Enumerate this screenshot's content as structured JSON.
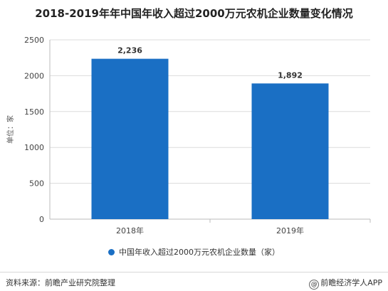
{
  "chart_data": {
    "type": "bar",
    "title": "2018-2019年年中国年收入超过2000万元农机企业数量变化情况",
    "categories": [
      "2018年",
      "2019年"
    ],
    "series": [
      {
        "name": "中国年收入超过2000万元农机企业数量（家）",
        "values": [
          2236,
          1892
        ]
      }
    ],
    "data_labels": [
      "2,236",
      "1,892"
    ],
    "ylabel": "单位：家",
    "ylim": [
      0,
      2500
    ],
    "yticks": [
      0,
      500,
      1000,
      1500,
      2000,
      2500
    ],
    "grid": true,
    "legend": "bottom",
    "bar_color": "#1a6fc4"
  },
  "footer": {
    "source": "资料来源：前瞻产业研究院整理",
    "brand": "前瞻经济学人APP",
    "brand_mark": "@"
  }
}
